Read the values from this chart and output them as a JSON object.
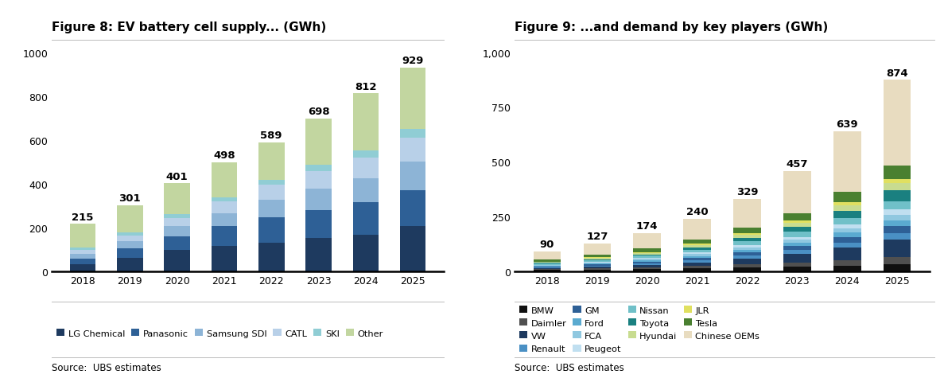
{
  "fig8": {
    "title": "Figure 8: EV battery cell supply... (GWh)",
    "years": [
      2018,
      2019,
      2020,
      2021,
      2022,
      2023,
      2024,
      2025
    ],
    "totals": [
      215,
      301,
      401,
      498,
      589,
      698,
      812,
      929
    ],
    "series": {
      "LG Chemical": [
        30,
        60,
        95,
        115,
        130,
        150,
        165,
        205
      ],
      "Panasonic": [
        28,
        45,
        65,
        90,
        115,
        130,
        150,
        165
      ],
      "Samsung SDI": [
        20,
        30,
        45,
        60,
        80,
        95,
        110,
        130
      ],
      "CATL": [
        18,
        28,
        38,
        52,
        68,
        82,
        95,
        110
      ],
      "SKI": [
        12,
        15,
        18,
        21,
        24,
        28,
        32,
        40
      ],
      "Other": [
        107,
        123,
        140,
        160,
        172,
        213,
        260,
        279
      ]
    },
    "colors": {
      "LG Chemical": "#1e3a5f",
      "Panasonic": "#2e6096",
      "Samsung SDI": "#8db4d6",
      "CATL": "#b8d0e8",
      "SKI": "#90cdd4",
      "Other": "#c2d6a0"
    },
    "ylim": [
      0,
      1050
    ],
    "yticks": [
      0,
      200,
      400,
      600,
      800,
      1000
    ],
    "ytick_labels": [
      "0",
      "200",
      "400",
      "600",
      "800",
      "1000"
    ],
    "source": "Source:  UBS estimates"
  },
  "fig9": {
    "title": "Figure 9: ...and demand by key players (GWh)",
    "years": [
      2018,
      2019,
      2020,
      2021,
      2022,
      2023,
      2024,
      2025
    ],
    "totals": [
      90,
      127,
      174,
      240,
      329,
      457,
      639,
      874
    ],
    "series": {
      "BMW": [
        5,
        7,
        9,
        12,
        16,
        20,
        25,
        32
      ],
      "Daimler": [
        4,
        6,
        8,
        11,
        15,
        19,
        24,
        30
      ],
      "VW": [
        4,
        6,
        10,
        15,
        25,
        38,
        58,
        82
      ],
      "Renault": [
        4,
        6,
        8,
        11,
        14,
        18,
        24,
        30
      ],
      "GM": [
        4,
        6,
        8,
        11,
        14,
        18,
        23,
        30
      ],
      "Ford": [
        3,
        4,
        6,
        9,
        12,
        16,
        22,
        28
      ],
      "FCA": [
        3,
        4,
        6,
        8,
        11,
        14,
        19,
        25
      ],
      "Peugeot": [
        2,
        3,
        5,
        7,
        10,
        13,
        18,
        24
      ],
      "Nissan": [
        6,
        8,
        10,
        14,
        18,
        23,
        29,
        38
      ],
      "Toyota": [
        3,
        4,
        6,
        10,
        15,
        22,
        34,
        50
      ],
      "Hyundai": [
        3,
        5,
        7,
        10,
        14,
        18,
        25,
        33
      ],
      "JLR": [
        2,
        3,
        4,
        6,
        9,
        11,
        15,
        20
      ],
      "Tesla": [
        8,
        11,
        15,
        20,
        26,
        35,
        46,
        60
      ],
      "Chinese OEMs": [
        39,
        54,
        72,
        96,
        130,
        192,
        277,
        392
      ]
    },
    "colors": {
      "BMW": "#101010",
      "Daimler": "#505050",
      "VW": "#1e3a5f",
      "Renault": "#4a90c4",
      "GM": "#2e6096",
      "Ford": "#5aaad0",
      "FCA": "#90c8e0",
      "Peugeot": "#c0dff0",
      "Nissan": "#70c0c8",
      "Toyota": "#1a8080",
      "Hyundai": "#c8dc90",
      "JLR": "#e0e060",
      "Tesla": "#4a8030",
      "Chinese OEMs": "#e8dcc0"
    },
    "ylim": [
      0,
      1050
    ],
    "yticks": [
      0,
      250,
      500,
      750,
      1000
    ],
    "ytick_labels": [
      "0",
      "250",
      "500",
      "750",
      "1,000"
    ],
    "source": "Source:  UBS estimates"
  },
  "background_color": "#ffffff",
  "title_fontsize": 11,
  "tick_fontsize": 9,
  "total_fontsize": 9.5,
  "legend_fontsize": 8.2
}
